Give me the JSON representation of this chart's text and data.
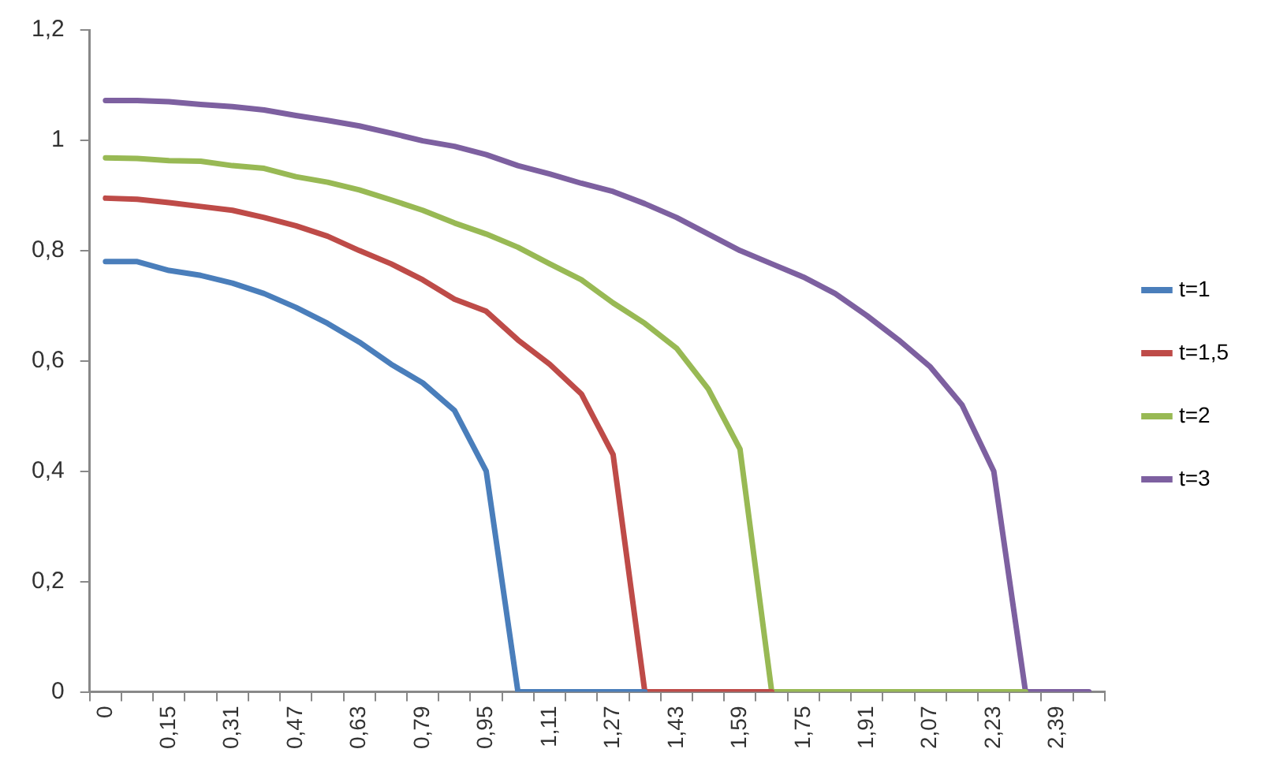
{
  "chart_data": {
    "type": "line",
    "categories": [
      "0",
      null,
      "0,15",
      null,
      "0,31",
      null,
      "0,47",
      null,
      "0,63",
      null,
      "0,79",
      null,
      "0,95",
      null,
      "1,11",
      null,
      "1,27",
      null,
      "1,43",
      null,
      "1,59",
      null,
      "1,75",
      null,
      "1,91",
      null,
      "2,07",
      null,
      "2,23",
      null,
      "2,39",
      null
    ],
    "ylim": [
      0,
      1.2
    ],
    "yticks": [
      0,
      {
        "value": 0.2,
        "label": "0,2"
      },
      {
        "value": 0.4,
        "label": "0,4"
      },
      {
        "value": 0.6,
        "label": "0,6"
      },
      {
        "value": 0.8,
        "label": "0,8"
      },
      1,
      {
        "value": 1.2,
        "label": "1,2"
      }
    ],
    "grid": false,
    "legend": "right",
    "marker": "none",
    "line_style": "solid",
    "series": [
      {
        "name": "t=1",
        "color": "#4a7ebb",
        "values": [
          0.78,
          0.78,
          0.764,
          0.755,
          0.741,
          0.722,
          0.697,
          0.668,
          0.634,
          0.594,
          0.56,
          0.51,
          0.4,
          0,
          0,
          0,
          0,
          0,
          null,
          null,
          null,
          null,
          null,
          null,
          null,
          null,
          null,
          null,
          null,
          null,
          null,
          null
        ]
      },
      {
        "name": "t=1,5",
        "color": "#be4b48",
        "values": [
          0.895,
          0.893,
          0.887,
          0.88,
          0.873,
          0.86,
          0.845,
          0.826,
          0.8,
          0.776,
          0.747,
          0.712,
          0.69,
          0.638,
          0.594,
          0.54,
          0.43,
          0,
          0,
          0,
          0,
          0,
          null,
          null,
          null,
          null,
          null,
          null,
          null,
          null,
          null,
          null
        ]
      },
      {
        "name": "t=2",
        "color": "#98b954",
        "values": [
          0.968,
          0.967,
          0.963,
          0.962,
          0.954,
          0.949,
          0.934,
          0.924,
          0.91,
          0.892,
          0.873,
          0.85,
          0.83,
          0.806,
          0.776,
          0.747,
          0.705,
          0.668,
          0.623,
          0.549,
          0.44,
          0,
          0,
          0,
          0,
          0,
          0,
          0,
          0,
          0,
          null,
          null
        ]
      },
      {
        "name": "t=3",
        "color": "#7d60a0",
        "values": [
          1.072,
          1.072,
          1.07,
          1.065,
          1.061,
          1.055,
          1.045,
          1.036,
          1.026,
          1.013,
          0.999,
          0.989,
          0.974,
          0.954,
          0.939,
          0.922,
          0.907,
          0.885,
          0.86,
          0.83,
          0.8,
          0.776,
          0.752,
          0.722,
          0.682,
          0.638,
          0.589,
          0.52,
          0.4,
          0,
          0,
          0
        ]
      }
    ]
  }
}
